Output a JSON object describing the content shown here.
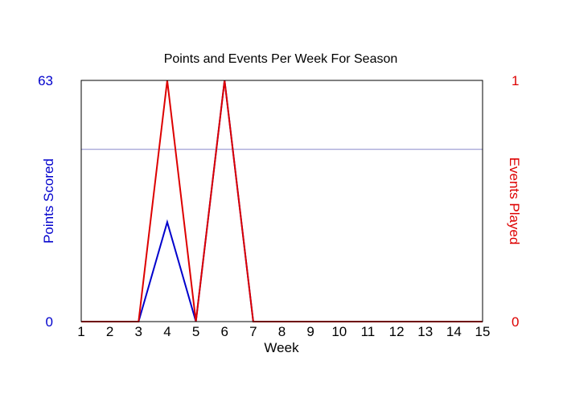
{
  "chart_data": {
    "type": "line",
    "title": "Points and Events Per Week For Season",
    "xlabel": "Week",
    "ylabel_left": "Points Scored",
    "ylabel_right": "Events Played",
    "x": [
      1,
      2,
      3,
      4,
      5,
      6,
      7,
      8,
      9,
      10,
      11,
      12,
      13,
      14,
      15
    ],
    "x_ticks": [
      "1",
      "2",
      "3",
      "4",
      "5",
      "6",
      "7",
      "8",
      "9",
      "10",
      "11",
      "12",
      "13",
      "14",
      "15"
    ],
    "ylim_left": [
      0,
      63
    ],
    "ylim_right": [
      0,
      1
    ],
    "y_left_ticks": [
      "0",
      "63"
    ],
    "y_right_ticks": [
      "0",
      "1"
    ],
    "reference_line_left": 45,
    "grid": false,
    "legend": "none",
    "series": [
      {
        "axis": "left",
        "color": "#0000cc",
        "values": [
          0,
          0,
          0,
          26,
          0,
          63,
          0,
          0,
          0,
          0,
          0,
          0,
          0,
          0,
          0
        ]
      },
      {
        "axis": "right",
        "color": "#dd0000",
        "values": [
          0,
          0,
          0,
          1,
          0,
          1,
          0,
          0,
          0,
          0,
          0,
          0,
          0,
          0,
          0
        ]
      }
    ],
    "colors": {
      "left_axis": "#0000cc",
      "right_axis": "#dd0000",
      "reference_line": "#8888cc",
      "frame": "#000000"
    }
  }
}
